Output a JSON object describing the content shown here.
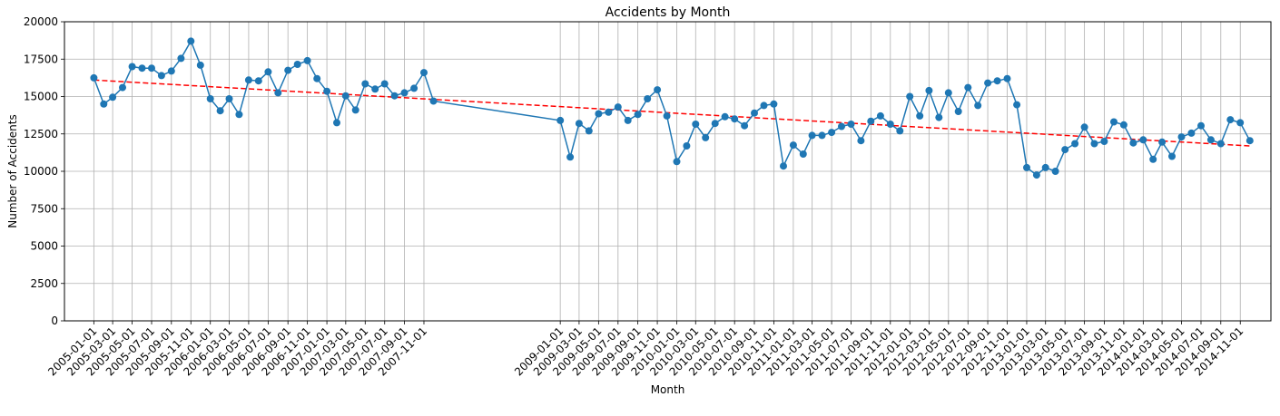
{
  "chart_data": {
    "type": "line",
    "title": "Accidents by Month",
    "xlabel": "Month",
    "ylabel": "Number of Accidents",
    "xlim": [
      "2004-10-01",
      "2015-02-05"
    ],
    "ylim": [
      0,
      20000
    ],
    "yticks": [
      0,
      2500,
      5000,
      7500,
      10000,
      12500,
      15000,
      17500,
      20000
    ],
    "xticks": [
      "2005-01-01",
      "2005-03-01",
      "2005-05-01",
      "2005-07-01",
      "2005-09-01",
      "2005-11-01",
      "2006-01-01",
      "2006-03-01",
      "2006-05-01",
      "2006-07-01",
      "2006-09-01",
      "2006-11-01",
      "2007-01-01",
      "2007-03-01",
      "2007-05-01",
      "2007-07-01",
      "2007-09-01",
      "2007-11-01",
      "2009-01-01",
      "2009-03-01",
      "2009-05-01",
      "2009-07-01",
      "2009-09-01",
      "2009-11-01",
      "2010-01-01",
      "2010-03-01",
      "2010-05-01",
      "2010-07-01",
      "2010-09-01",
      "2010-11-01",
      "2011-01-01",
      "2011-03-01",
      "2011-05-01",
      "2011-07-01",
      "2011-09-01",
      "2011-11-01",
      "2012-01-01",
      "2012-03-01",
      "2012-05-01",
      "2012-07-01",
      "2012-09-01",
      "2012-11-01",
      "2013-01-01",
      "2013-03-01",
      "2013-05-01",
      "2013-07-01",
      "2013-09-01",
      "2013-11-01",
      "2014-01-01",
      "2014-03-01",
      "2014-05-01",
      "2014-07-01",
      "2014-09-01",
      "2014-11-01"
    ],
    "grid": true,
    "series": [
      {
        "style": "line-with-markers",
        "color": "#1f77b4",
        "points": [
          [
            "2005-01-01",
            16250
          ],
          [
            "2005-02-01",
            14500
          ],
          [
            "2005-03-01",
            14950
          ],
          [
            "2005-04-01",
            15600
          ],
          [
            "2005-05-01",
            17000
          ],
          [
            "2005-06-01",
            16900
          ],
          [
            "2005-07-01",
            16900
          ],
          [
            "2005-08-01",
            16400
          ],
          [
            "2005-09-01",
            16700
          ],
          [
            "2005-10-01",
            17550
          ],
          [
            "2005-11-01",
            18700
          ],
          [
            "2005-12-01",
            17100
          ],
          [
            "2006-01-01",
            14850
          ],
          [
            "2006-02-01",
            14050
          ],
          [
            "2006-03-01",
            14850
          ],
          [
            "2006-04-01",
            13800
          ],
          [
            "2006-05-01",
            16100
          ],
          [
            "2006-06-01",
            16050
          ],
          [
            "2006-07-01",
            16650
          ],
          [
            "2006-08-01",
            15250
          ],
          [
            "2006-09-01",
            16750
          ],
          [
            "2006-10-01",
            17150
          ],
          [
            "2006-11-01",
            17400
          ],
          [
            "2006-12-01",
            16200
          ],
          [
            "2007-01-01",
            15350
          ],
          [
            "2007-02-01",
            13250
          ],
          [
            "2007-03-01",
            15050
          ],
          [
            "2007-04-01",
            14100
          ],
          [
            "2007-05-01",
            15850
          ],
          [
            "2007-06-01",
            15500
          ],
          [
            "2007-07-01",
            15850
          ],
          [
            "2007-08-01",
            15050
          ],
          [
            "2007-09-01",
            15250
          ],
          [
            "2007-10-01",
            15550
          ],
          [
            "2007-11-01",
            16600
          ],
          [
            "2007-12-01",
            14700
          ],
          [
            "2009-01-01",
            13400
          ],
          [
            "2009-02-01",
            10950
          ],
          [
            "2009-03-01",
            13200
          ],
          [
            "2009-04-01",
            12700
          ],
          [
            "2009-05-01",
            13850
          ],
          [
            "2009-06-01",
            13950
          ],
          [
            "2009-07-01",
            14300
          ],
          [
            "2009-08-01",
            13400
          ],
          [
            "2009-09-01",
            13800
          ],
          [
            "2009-10-01",
            14850
          ],
          [
            "2009-11-01",
            15450
          ],
          [
            "2009-12-01",
            13700
          ],
          [
            "2010-01-01",
            10650
          ],
          [
            "2010-02-01",
            11700
          ],
          [
            "2010-03-01",
            13150
          ],
          [
            "2010-04-01",
            12250
          ],
          [
            "2010-05-01",
            13200
          ],
          [
            "2010-06-01",
            13650
          ],
          [
            "2010-07-01",
            13500
          ],
          [
            "2010-08-01",
            13050
          ],
          [
            "2010-09-01",
            13900
          ],
          [
            "2010-10-01",
            14400
          ],
          [
            "2010-11-01",
            14500
          ],
          [
            "2010-12-01",
            10350
          ],
          [
            "2011-01-01",
            11750
          ],
          [
            "2011-02-01",
            11150
          ],
          [
            "2011-03-01",
            12400
          ],
          [
            "2011-04-01",
            12400
          ],
          [
            "2011-05-01",
            12600
          ],
          [
            "2011-06-01",
            13000
          ],
          [
            "2011-07-01",
            13150
          ],
          [
            "2011-08-01",
            12050
          ],
          [
            "2011-09-01",
            13350
          ],
          [
            "2011-10-01",
            13700
          ],
          [
            "2011-11-01",
            13150
          ],
          [
            "2011-12-01",
            12700
          ],
          [
            "2012-01-01",
            15000
          ],
          [
            "2012-02-01",
            13700
          ],
          [
            "2012-03-01",
            15400
          ],
          [
            "2012-04-01",
            13600
          ],
          [
            "2012-05-01",
            15250
          ],
          [
            "2012-06-01",
            14000
          ],
          [
            "2012-07-01",
            15600
          ],
          [
            "2012-08-01",
            14400
          ],
          [
            "2012-09-01",
            15900
          ],
          [
            "2012-10-01",
            16050
          ],
          [
            "2012-11-01",
            16200
          ],
          [
            "2012-12-01",
            14450
          ],
          [
            "2013-01-01",
            10250
          ],
          [
            "2013-02-01",
            9750
          ],
          [
            "2013-03-01",
            10250
          ],
          [
            "2013-04-01",
            10000
          ],
          [
            "2013-05-01",
            11450
          ],
          [
            "2013-06-01",
            11850
          ],
          [
            "2013-07-01",
            12950
          ],
          [
            "2013-08-01",
            11850
          ],
          [
            "2013-09-01",
            12000
          ],
          [
            "2013-10-01",
            13300
          ],
          [
            "2013-11-01",
            13100
          ],
          [
            "2013-12-01",
            11900
          ],
          [
            "2014-01-01",
            12100
          ],
          [
            "2014-02-01",
            10800
          ],
          [
            "2014-03-01",
            11950
          ],
          [
            "2014-04-01",
            11000
          ],
          [
            "2014-05-01",
            12300
          ],
          [
            "2014-06-01",
            12550
          ],
          [
            "2014-07-01",
            13050
          ],
          [
            "2014-08-01",
            12100
          ],
          [
            "2014-09-01",
            11850
          ],
          [
            "2014-10-01",
            13450
          ],
          [
            "2014-11-01",
            13250
          ],
          [
            "2014-12-01",
            12050
          ]
        ]
      },
      {
        "style": "dashed-trend",
        "color": "#ff0000",
        "points": [
          [
            "2005-01-01",
            16100
          ],
          [
            "2014-12-01",
            11700
          ]
        ]
      }
    ]
  }
}
